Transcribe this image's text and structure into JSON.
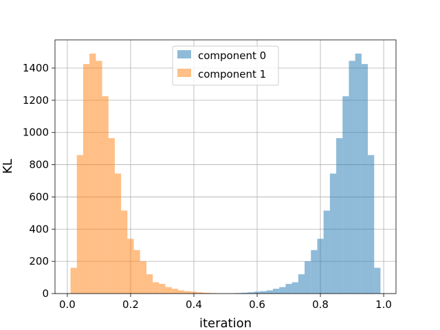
{
  "chart_data": {
    "type": "bar",
    "title": "",
    "xlabel": "iteration",
    "ylabel": "KL",
    "xlim": [
      -0.039,
      1.039
    ],
    "ylim": [
      0,
      1575
    ],
    "xticks": [
      "0.0",
      "0.2",
      "0.4",
      "0.6",
      "0.8",
      "1.0"
    ],
    "yticks": [
      "0",
      "200",
      "400",
      "600",
      "800",
      "1000",
      "1200",
      "1400"
    ],
    "grid": true,
    "legend_position": "top-center",
    "bin_width": 0.02,
    "series": [
      {
        "name": "component 0",
        "color": "#1f77b4",
        "opacity": 0.5,
        "bin_starts": [
          0.53,
          0.55,
          0.57,
          0.59,
          0.61,
          0.63,
          0.65,
          0.67,
          0.69,
          0.71,
          0.73,
          0.75,
          0.77,
          0.79,
          0.81,
          0.83,
          0.85,
          0.87,
          0.89,
          0.91,
          0.93,
          0.95,
          0.97
        ],
        "values": [
          3,
          5,
          8,
          12,
          15,
          20,
          30,
          40,
          60,
          70,
          120,
          200,
          270,
          340,
          515,
          745,
          965,
          1225,
          1445,
          1490,
          1425,
          860,
          160
        ]
      },
      {
        "name": "component 1",
        "color": "#ff7f0e",
        "opacity": 0.5,
        "bin_starts": [
          0.01,
          0.03,
          0.05,
          0.07,
          0.09,
          0.11,
          0.13,
          0.15,
          0.17,
          0.19,
          0.21,
          0.23,
          0.25,
          0.27,
          0.29,
          0.31,
          0.33,
          0.35,
          0.37,
          0.39,
          0.41,
          0.43,
          0.45
        ],
        "values": [
          160,
          860,
          1425,
          1490,
          1445,
          1225,
          965,
          745,
          515,
          340,
          270,
          200,
          120,
          70,
          60,
          40,
          30,
          20,
          15,
          12,
          8,
          5,
          3
        ]
      }
    ]
  }
}
